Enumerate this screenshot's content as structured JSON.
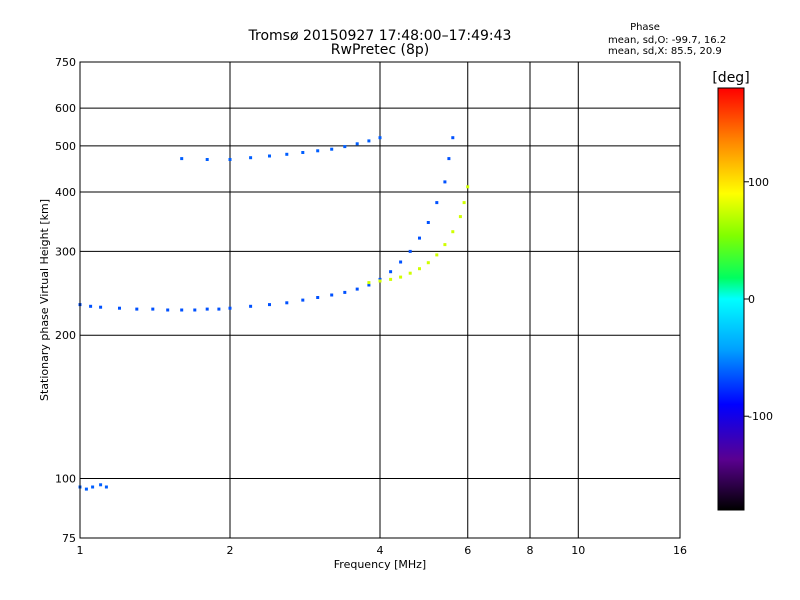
{
  "chart_data": {
    "type": "scatter",
    "title": "Tromsø 20150927 17:48:00–17:49:43",
    "subtitle": "RwPretec (8p)",
    "xlabel": "Frequency [MHz]",
    "ylabel": "Stationary phase Virtual Height [km]",
    "x_scale": "log",
    "y_scale": "log",
    "xlim": [
      1,
      16
    ],
    "ylim": [
      75,
      750
    ],
    "x_ticks": [
      1,
      2,
      4,
      6,
      8,
      10,
      16
    ],
    "x_tick_labels": [
      "1",
      "2",
      "4",
      "6",
      "8",
      "10",
      "16"
    ],
    "y_ticks": [
      75,
      100,
      200,
      300,
      400,
      500,
      600,
      750
    ],
    "y_tick_labels": [
      "75",
      "100",
      "200",
      "300",
      "400",
      "500",
      "600",
      "750"
    ],
    "grid": true,
    "phase_info": {
      "heading": "Phase",
      "o_mode": "mean, sd,O: -99.7, 16.2",
      "x_mode": "mean, sd,X:  85.5, 20.9"
    },
    "colorbar": {
      "label": "[deg]",
      "range": [
        -180,
        180
      ],
      "ticks": [
        100,
        0,
        -100
      ],
      "tick_labels": [
        "100",
        "0",
        "-100"
      ]
    },
    "series": [
      {
        "mode": "o-trace",
        "phase": -115,
        "points": [
          [
            1.0,
            232
          ],
          [
            1.05,
            230
          ],
          [
            1.1,
            229
          ],
          [
            1.2,
            228
          ],
          [
            1.3,
            227
          ],
          [
            1.4,
            227
          ],
          [
            1.5,
            226
          ],
          [
            1.6,
            226
          ],
          [
            1.7,
            226
          ],
          [
            1.8,
            227
          ],
          [
            1.9,
            227
          ],
          [
            2.0,
            228
          ],
          [
            2.2,
            230
          ],
          [
            2.4,
            232
          ],
          [
            2.6,
            234
          ],
          [
            2.8,
            237
          ],
          [
            3.0,
            240
          ],
          [
            3.2,
            243
          ],
          [
            3.4,
            246
          ],
          [
            3.6,
            250
          ],
          [
            3.8,
            255
          ],
          [
            4.0,
            262
          ],
          [
            4.2,
            272
          ],
          [
            4.4,
            285
          ],
          [
            4.6,
            300
          ],
          [
            4.8,
            320
          ],
          [
            5.0,
            345
          ],
          [
            5.2,
            380
          ],
          [
            5.4,
            420
          ],
          [
            5.5,
            470
          ],
          [
            5.6,
            520
          ]
        ]
      },
      {
        "mode": "x-trace",
        "phase": 85,
        "points": [
          [
            3.8,
            258
          ],
          [
            4.0,
            260
          ],
          [
            4.2,
            262
          ],
          [
            4.4,
            265
          ],
          [
            4.6,
            270
          ],
          [
            4.8,
            276
          ],
          [
            5.0,
            284
          ],
          [
            5.2,
            295
          ],
          [
            5.4,
            310
          ],
          [
            5.6,
            330
          ],
          [
            5.8,
            355
          ],
          [
            5.9,
            380
          ],
          [
            6.0,
            410
          ]
        ]
      },
      {
        "mode": "f-layer-upper",
        "phase": -110,
        "points": [
          [
            1.6,
            470
          ],
          [
            1.8,
            468
          ],
          [
            2.0,
            468
          ],
          [
            2.2,
            472
          ],
          [
            2.4,
            476
          ],
          [
            2.6,
            480
          ],
          [
            2.8,
            484
          ],
          [
            3.0,
            488
          ],
          [
            3.2,
            492
          ],
          [
            3.4,
            498
          ],
          [
            3.6,
            505
          ],
          [
            3.8,
            512
          ],
          [
            4.0,
            520
          ]
        ]
      },
      {
        "mode": "e-layer",
        "phase": -110,
        "points": [
          [
            1.0,
            96
          ],
          [
            1.03,
            95
          ],
          [
            1.06,
            96
          ],
          [
            1.1,
            97
          ],
          [
            1.13,
            96
          ]
        ]
      }
    ]
  }
}
